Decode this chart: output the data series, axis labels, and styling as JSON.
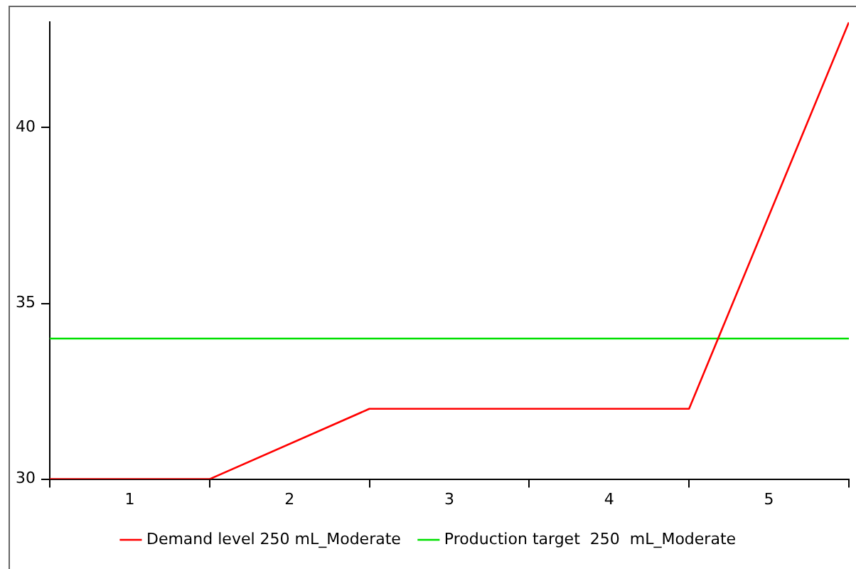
{
  "chart_data": {
    "type": "line",
    "xlim": [
      0.5,
      5.5
    ],
    "xticks": [
      {
        "value": 0.5,
        "label": null
      },
      1,
      {
        "value": 1.5,
        "label": null
      },
      2,
      {
        "value": 2.5,
        "label": null
      },
      3,
      {
        "value": 3.5,
        "label": null
      },
      4,
      {
        "value": 4.5,
        "label": null
      },
      5,
      {
        "value": 5.5,
        "label": null
      }
    ],
    "ylim": [
      30,
      43
    ],
    "yticks": [
      30,
      35,
      40
    ],
    "series": [
      {
        "name": "Demand level 250 mL_Moderate",
        "color": "#ff0000",
        "x": [
          0.5,
          1.5,
          2.5,
          3.5,
          4.5,
          5.5
        ],
        "values": [
          30,
          30,
          32,
          32,
          32,
          43
        ]
      },
      {
        "name": "Production target  250  mL_Moderate",
        "color": "#00e000",
        "x": [
          0.5,
          5.5
        ],
        "values": [
          34,
          34
        ]
      }
    ],
    "grid": false,
    "legend": "bottom",
    "marker": "none",
    "line_style": "solid"
  }
}
